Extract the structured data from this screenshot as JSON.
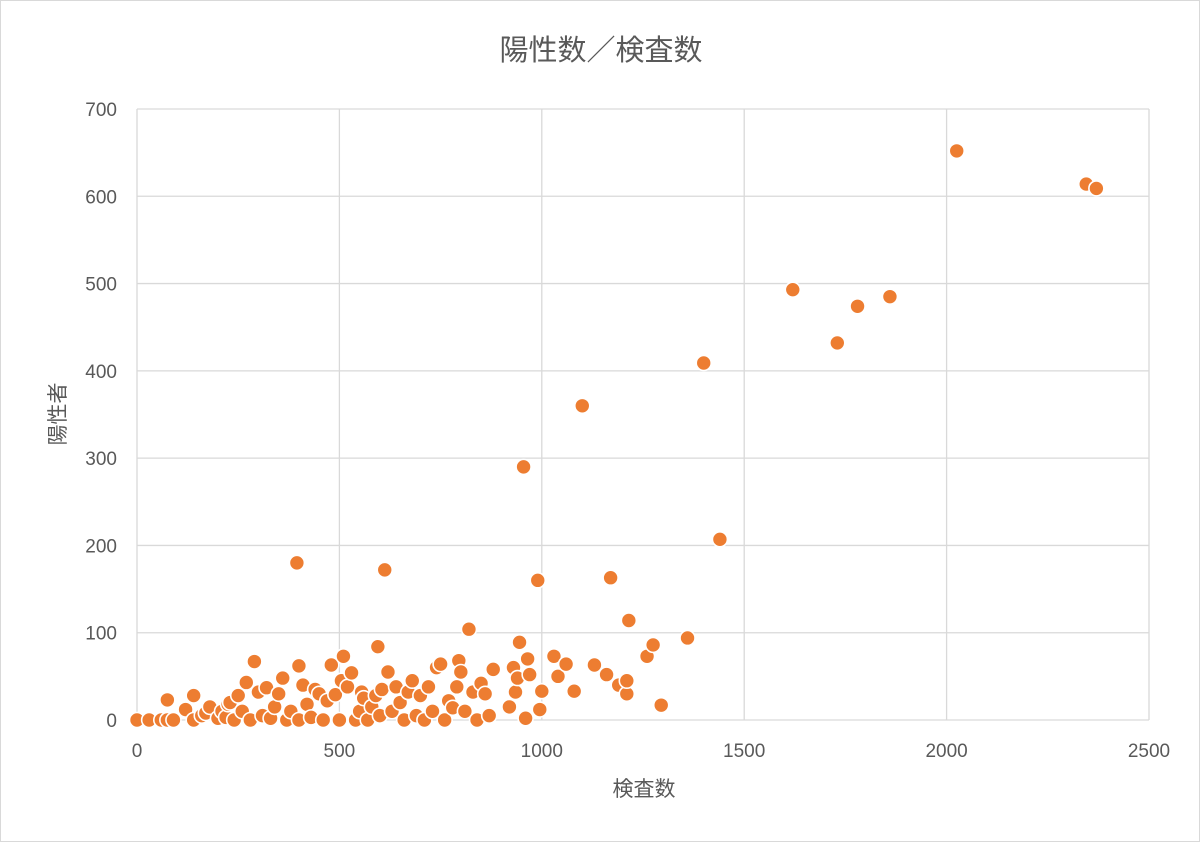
{
  "chart_data": {
    "type": "scatter",
    "title": "陽性数／検査数",
    "xlabel": "検査数",
    "ylabel": "陽性者",
    "xlim": [
      0,
      2500
    ],
    "ylim": [
      0,
      700
    ],
    "xticks": [
      0,
      500,
      1000,
      1500,
      2000,
      2500
    ],
    "yticks": [
      0,
      100,
      200,
      300,
      400,
      500,
      600,
      700
    ],
    "xtick_labels": [
      "0",
      "500",
      "1000",
      "1500",
      "2000",
      "2500"
    ],
    "ytick_labels": [
      "0",
      "100",
      "200",
      "300",
      "400",
      "500",
      "600",
      "700"
    ],
    "grid": true,
    "marker_color": "#ED7D31",
    "marker_edge": "#ffffff",
    "points": [
      [
        0,
        0
      ],
      [
        30,
        0
      ],
      [
        60,
        0
      ],
      [
        75,
        0
      ],
      [
        90,
        0
      ],
      [
        75,
        23
      ],
      [
        120,
        12
      ],
      [
        140,
        0
      ],
      [
        140,
        28
      ],
      [
        160,
        5
      ],
      [
        170,
        8
      ],
      [
        180,
        15
      ],
      [
        200,
        2
      ],
      [
        210,
        10
      ],
      [
        220,
        3
      ],
      [
        225,
        18
      ],
      [
        230,
        20
      ],
      [
        240,
        0
      ],
      [
        250,
        28
      ],
      [
        260,
        10
      ],
      [
        270,
        43
      ],
      [
        280,
        0
      ],
      [
        290,
        67
      ],
      [
        300,
        32
      ],
      [
        310,
        5
      ],
      [
        320,
        37
      ],
      [
        330,
        2
      ],
      [
        340,
        15
      ],
      [
        350,
        30
      ],
      [
        360,
        48
      ],
      [
        370,
        0
      ],
      [
        380,
        10
      ],
      [
        395,
        180
      ],
      [
        400,
        0
      ],
      [
        400,
        62
      ],
      [
        410,
        40
      ],
      [
        420,
        18
      ],
      [
        430,
        3
      ],
      [
        440,
        35
      ],
      [
        450,
        30
      ],
      [
        460,
        0
      ],
      [
        470,
        22
      ],
      [
        480,
        63
      ],
      [
        490,
        29
      ],
      [
        500,
        0
      ],
      [
        505,
        45
      ],
      [
        510,
        73
      ],
      [
        520,
        38
      ],
      [
        530,
        54
      ],
      [
        540,
        0
      ],
      [
        550,
        10
      ],
      [
        555,
        32
      ],
      [
        560,
        25
      ],
      [
        570,
        0
      ],
      [
        580,
        15
      ],
      [
        590,
        28
      ],
      [
        595,
        84
      ],
      [
        600,
        5
      ],
      [
        605,
        35
      ],
      [
        612,
        172
      ],
      [
        620,
        55
      ],
      [
        630,
        10
      ],
      [
        640,
        38
      ],
      [
        650,
        20
      ],
      [
        660,
        0
      ],
      [
        670,
        32
      ],
      [
        680,
        45
      ],
      [
        690,
        5
      ],
      [
        700,
        28
      ],
      [
        710,
        0
      ],
      [
        720,
        38
      ],
      [
        730,
        10
      ],
      [
        740,
        60
      ],
      [
        750,
        64
      ],
      [
        760,
        0
      ],
      [
        770,
        22
      ],
      [
        780,
        14
      ],
      [
        790,
        38
      ],
      [
        795,
        68
      ],
      [
        800,
        55
      ],
      [
        810,
        10
      ],
      [
        820,
        104
      ],
      [
        830,
        32
      ],
      [
        840,
        0
      ],
      [
        850,
        42
      ],
      [
        860,
        30
      ],
      [
        870,
        5
      ],
      [
        880,
        58
      ],
      [
        920,
        15
      ],
      [
        930,
        60
      ],
      [
        935,
        32
      ],
      [
        940,
        48
      ],
      [
        945,
        89
      ],
      [
        955,
        290
      ],
      [
        960,
        2
      ],
      [
        965,
        70
      ],
      [
        970,
        52
      ],
      [
        990,
        160
      ],
      [
        995,
        12
      ],
      [
        1000,
        33
      ],
      [
        1030,
        73
      ],
      [
        1040,
        50
      ],
      [
        1060,
        64
      ],
      [
        1080,
        33
      ],
      [
        1100,
        360
      ],
      [
        1130,
        63
      ],
      [
        1160,
        52
      ],
      [
        1170,
        163
      ],
      [
        1190,
        40
      ],
      [
        1210,
        30
      ],
      [
        1210,
        45
      ],
      [
        1215,
        114
      ],
      [
        1260,
        73
      ],
      [
        1275,
        86
      ],
      [
        1295,
        17
      ],
      [
        1360,
        94
      ],
      [
        1400,
        409
      ],
      [
        1440,
        207
      ],
      [
        1620,
        493
      ],
      [
        1730,
        432
      ],
      [
        1780,
        474
      ],
      [
        1860,
        485
      ],
      [
        2025,
        652
      ],
      [
        2345,
        614
      ],
      [
        2370,
        609
      ]
    ]
  }
}
